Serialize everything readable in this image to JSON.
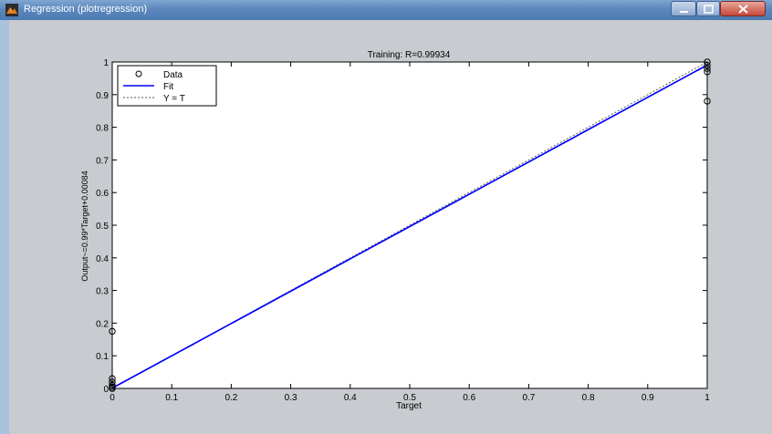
{
  "window": {
    "title": "Regression (plotregression)",
    "app_icon": "matlab-icon",
    "controls": [
      "minimize-icon",
      "maximize-icon",
      "close-icon"
    ]
  },
  "chart_data": {
    "type": "scatter",
    "title": "Training: R=0.99934",
    "xlabel": "Target",
    "ylabel": "Output~=0.99*Target+0.00084",
    "xlim": [
      0,
      1
    ],
    "ylim": [
      0,
      1
    ],
    "xticks": [
      "0",
      "0.1",
      "0.2",
      "0.3",
      "0.4",
      "0.5",
      "0.6",
      "0.7",
      "0.8",
      "0.9",
      "1"
    ],
    "yticks": [
      "0",
      "0.1",
      "0.2",
      "0.3",
      "0.4",
      "0.5",
      "0.6",
      "0.7",
      "0.8",
      "0.9",
      "1"
    ],
    "grid": false,
    "legend_position": "top-left",
    "series": [
      {
        "name": "Data",
        "type": "scatter",
        "marker": "circle",
        "color": "#000000",
        "x": [
          0,
          0,
          0,
          0,
          0,
          0,
          0,
          1,
          1,
          1,
          1,
          1
        ],
        "y": [
          0,
          0.005,
          0.01,
          0.02,
          0.03,
          0.175,
          0.0,
          1.0,
          0.99,
          0.98,
          0.97,
          0.88
        ]
      },
      {
        "name": "Fit",
        "type": "line",
        "color": "#0000ff",
        "x": [
          0,
          1
        ],
        "y": [
          0.00084,
          0.99084
        ]
      },
      {
        "name": "Y = T",
        "type": "line",
        "style": "dotted",
        "color": "#5a5a5a",
        "x": [
          0,
          1
        ],
        "y": [
          0,
          1
        ]
      }
    ]
  }
}
